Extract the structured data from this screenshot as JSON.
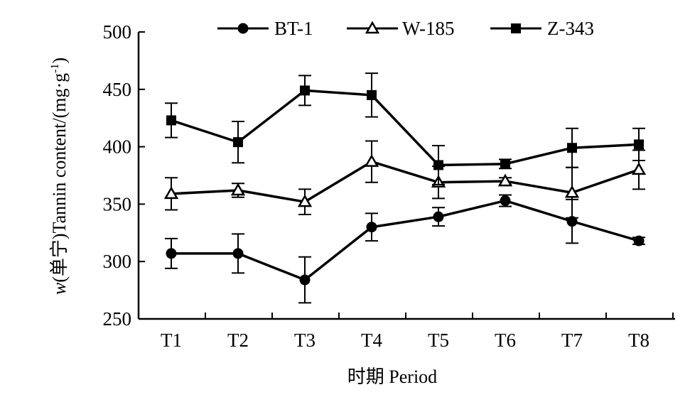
{
  "chart_data": {
    "type": "line",
    "categories": [
      "T1",
      "T2",
      "T3",
      "T4",
      "T5",
      "T6",
      "T7",
      "T8"
    ],
    "series": [
      {
        "name": "BT-1",
        "marker": "circle",
        "values": [
          307,
          307,
          284,
          330,
          339,
          353,
          335,
          318
        ],
        "errors": [
          13,
          17,
          20,
          12,
          8,
          5,
          19,
          3
        ]
      },
      {
        "name": "W-185",
        "marker": "triangle",
        "values": [
          359,
          362,
          352,
          387,
          369,
          370,
          360,
          380
        ],
        "errors": [
          14,
          6,
          11,
          18,
          14,
          3,
          22,
          17
        ]
      },
      {
        "name": "Z-343",
        "marker": "square",
        "values": [
          423,
          404,
          449,
          445,
          384,
          385,
          399,
          402
        ],
        "errors": [
          15,
          18,
          13,
          19,
          17,
          4,
          17,
          14
        ]
      }
    ],
    "ylim": [
      250,
      500
    ],
    "yticks": [
      250,
      300,
      350,
      400,
      450,
      500
    ],
    "xlabel": "时期 Period",
    "ylabel_w": "w",
    "ylabel_unit": "(单宁)",
    "ylabel": "Tannin content/(mg·g",
    "ylabel_sup": "-1",
    "ylabel_close": ")",
    "legend_position": "top"
  },
  "colors": {
    "line": "#000000",
    "axis": "#000000",
    "background": "#ffffff"
  }
}
